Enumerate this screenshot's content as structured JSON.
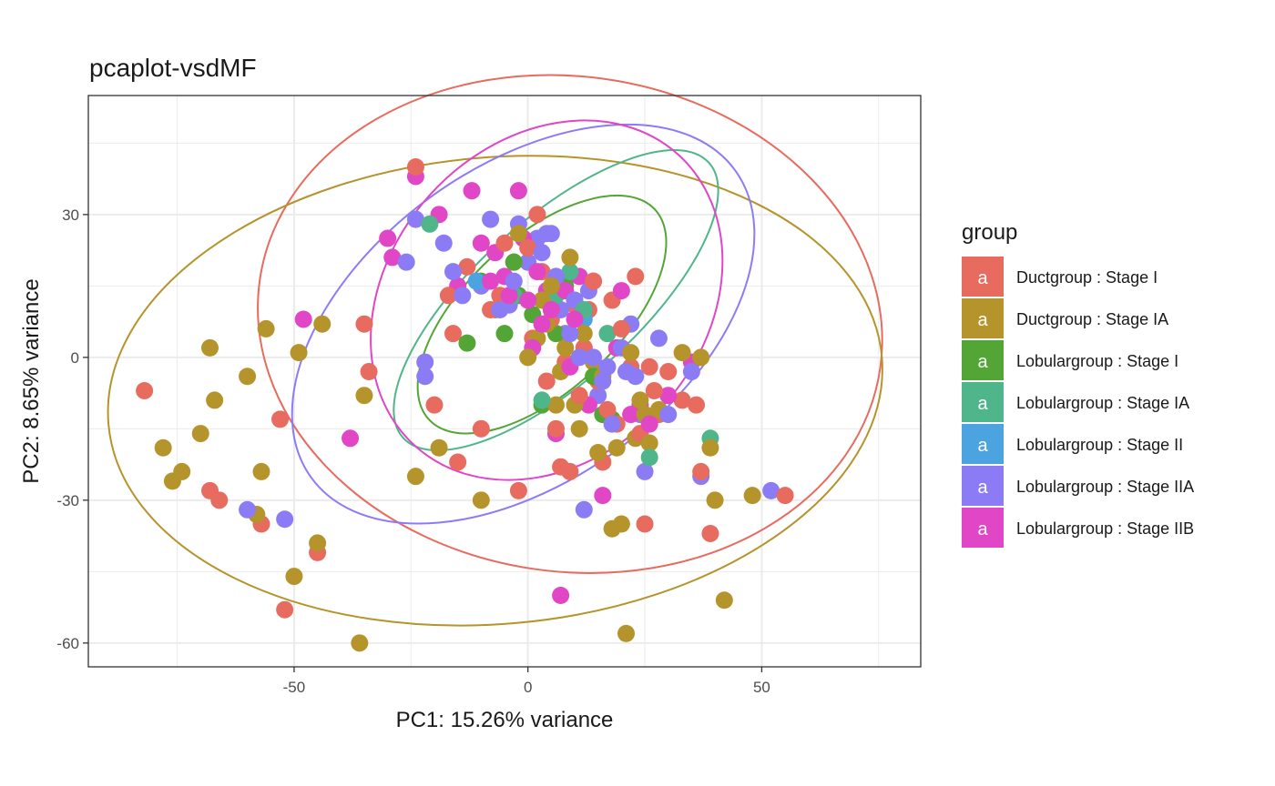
{
  "chart_data": {
    "type": "scatter",
    "title": "pcaplot-vsdMF",
    "xlabel": "PC1: 15.26% variance",
    "ylabel": "PC2: 8.65% variance",
    "xlim": [
      -94,
      84
    ],
    "ylim": [
      -65,
      55
    ],
    "xticks": [
      -50,
      0,
      50
    ],
    "yticks": [
      -60,
      -30,
      0,
      30
    ],
    "xtick_labels": [
      "-50",
      "0",
      "50"
    ],
    "ytick_labels": [
      "-60",
      "-30",
      "0",
      "30"
    ],
    "grid": true,
    "legend": {
      "title": "group",
      "placement": "right",
      "key_glyph": "a"
    },
    "series": [
      {
        "name": "Ductgroup : Stage I",
        "color": "#E76B5F",
        "ellipse": {
          "center": [
            9,
            7
          ],
          "rx": 67,
          "ry": 52,
          "angle": -8
        },
        "points": [
          [
            -82,
            -7
          ],
          [
            -68,
            -28
          ],
          [
            -66,
            -30
          ],
          [
            -57,
            -35
          ],
          [
            -53,
            -13
          ],
          [
            -52,
            -53
          ],
          [
            -45,
            -41
          ],
          [
            -35,
            7
          ],
          [
            -34,
            -3
          ],
          [
            -24,
            40
          ],
          [
            -20,
            -10
          ],
          [
            -17,
            13
          ],
          [
            -16,
            5
          ],
          [
            -15,
            -22
          ],
          [
            -13,
            19
          ],
          [
            -8,
            10
          ],
          [
            -5,
            24
          ],
          [
            -3,
            20
          ],
          [
            -2,
            -28
          ],
          [
            0,
            23
          ],
          [
            2,
            30
          ],
          [
            3,
            18
          ],
          [
            5,
            8
          ],
          [
            6,
            -15
          ],
          [
            7,
            -23
          ],
          [
            8,
            -1
          ],
          [
            9,
            -24
          ],
          [
            11,
            -8
          ],
          [
            12,
            2
          ],
          [
            13,
            10
          ],
          [
            14,
            16
          ],
          [
            16,
            -22
          ],
          [
            17,
            -11
          ],
          [
            18,
            12
          ],
          [
            20,
            6
          ],
          [
            22,
            -2
          ],
          [
            23,
            17
          ],
          [
            24,
            -16
          ],
          [
            25,
            -35
          ],
          [
            26,
            -2
          ],
          [
            28,
            -12
          ],
          [
            30,
            -3
          ],
          [
            33,
            -9
          ],
          [
            36,
            -10
          ],
          [
            37,
            -24
          ],
          [
            39,
            -37
          ],
          [
            55,
            -29
          ],
          [
            -10,
            -15
          ],
          [
            4,
            -5
          ],
          [
            10,
            11
          ],
          [
            19,
            -14
          ],
          [
            27,
            -7
          ],
          [
            -6,
            13
          ],
          [
            15,
            -5
          ],
          [
            1,
            4
          ]
        ]
      },
      {
        "name": "Ductgroup : Stage IA",
        "color": "#B5942B",
        "ellipse": {
          "center": [
            -7,
            -7
          ],
          "rx": 83,
          "ry": 49,
          "angle": 5
        },
        "points": [
          [
            -78,
            -19
          ],
          [
            -76,
            -26
          ],
          [
            -74,
            -24
          ],
          [
            -70,
            -16
          ],
          [
            -68,
            2
          ],
          [
            -67,
            -9
          ],
          [
            -60,
            -4
          ],
          [
            -58,
            -33
          ],
          [
            -57,
            -24
          ],
          [
            -56,
            6
          ],
          [
            -50,
            -46
          ],
          [
            -49,
            1
          ],
          [
            -45,
            -39
          ],
          [
            -44,
            7
          ],
          [
            -36,
            -60
          ],
          [
            -35,
            -8
          ],
          [
            -24,
            -25
          ],
          [
            -19,
            -19
          ],
          [
            -10,
            -30
          ],
          [
            -2,
            26
          ],
          [
            0,
            0
          ],
          [
            2,
            4
          ],
          [
            4,
            7
          ],
          [
            6,
            -10
          ],
          [
            7,
            -3
          ],
          [
            9,
            21
          ],
          [
            10,
            -10
          ],
          [
            12,
            5
          ],
          [
            14,
            -1
          ],
          [
            15,
            -20
          ],
          [
            18,
            -36
          ],
          [
            19,
            -19
          ],
          [
            20,
            -35
          ],
          [
            21,
            -58
          ],
          [
            22,
            1
          ],
          [
            24,
            -9
          ],
          [
            25,
            -12
          ],
          [
            26,
            -18
          ],
          [
            28,
            -11
          ],
          [
            33,
            1
          ],
          [
            37,
            0
          ],
          [
            39,
            -19
          ],
          [
            40,
            -30
          ],
          [
            42,
            -51
          ],
          [
            48,
            -29
          ],
          [
            -7,
            10
          ],
          [
            3,
            12
          ],
          [
            8,
            2
          ],
          [
            16,
            -4
          ],
          [
            23,
            -17
          ],
          [
            11,
            -15
          ],
          [
            5,
            15
          ]
        ]
      },
      {
        "name": "Lobulargroup : Stage I",
        "color": "#53A535",
        "ellipse": {
          "center": [
            3,
            9
          ],
          "rx": 33,
          "ry": 16,
          "angle": 43
        },
        "points": [
          [
            -13,
            3
          ],
          [
            -10,
            16
          ],
          [
            -5,
            5
          ],
          [
            -3,
            20
          ],
          [
            1,
            9
          ],
          [
            3,
            -10
          ],
          [
            6,
            5
          ],
          [
            8,
            15
          ],
          [
            10,
            12
          ],
          [
            16,
            -12
          ],
          [
            18,
            -13
          ],
          [
            14,
            -4
          ],
          [
            -2,
            13
          ]
        ]
      },
      {
        "name": "Lobulargroup : Stage IA",
        "color": "#4FB58B",
        "ellipse": {
          "center": [
            6,
            12
          ],
          "rx": 44,
          "ry": 17,
          "angle": 42
        },
        "points": [
          [
            -21,
            28
          ],
          [
            -3,
            13
          ],
          [
            3,
            -9
          ],
          [
            6,
            13
          ],
          [
            9,
            18
          ],
          [
            17,
            5
          ],
          [
            26,
            -21
          ],
          [
            39,
            -17
          ],
          [
            12,
            10
          ]
        ]
      },
      {
        "name": "Lobulargroup : Stage II",
        "color": "#4BA4E0",
        "ellipse": null,
        "points": [
          [
            -11,
            16
          ],
          [
            12,
            8
          ]
        ]
      },
      {
        "name": "Lobulargroup : Stage IIA",
        "color": "#8B7CF6",
        "ellipse": {
          "center": [
            -1,
            7
          ],
          "rx": 56,
          "ry": 33,
          "angle": 36
        },
        "points": [
          [
            -60,
            -32
          ],
          [
            -52,
            -34
          ],
          [
            -26,
            20
          ],
          [
            -24,
            29
          ],
          [
            -22,
            -1
          ],
          [
            -22,
            -4
          ],
          [
            -18,
            24
          ],
          [
            -16,
            18
          ],
          [
            -10,
            15
          ],
          [
            -6,
            10
          ],
          [
            -4,
            11
          ],
          [
            -2,
            28
          ],
          [
            0,
            20
          ],
          [
            2,
            25
          ],
          [
            4,
            26
          ],
          [
            5,
            26
          ],
          [
            6,
            17
          ],
          [
            8,
            5
          ],
          [
            9,
            5
          ],
          [
            10,
            12
          ],
          [
            12,
            -32
          ],
          [
            14,
            0
          ],
          [
            15,
            -8
          ],
          [
            16,
            -5
          ],
          [
            18,
            -14
          ],
          [
            20,
            2
          ],
          [
            21,
            -3
          ],
          [
            22,
            7
          ],
          [
            24,
            -12
          ],
          [
            25,
            -24
          ],
          [
            28,
            4
          ],
          [
            30,
            -12
          ],
          [
            35,
            -3
          ],
          [
            37,
            -25
          ],
          [
            52,
            -28
          ],
          [
            -8,
            29
          ],
          [
            -3,
            16
          ],
          [
            3,
            22
          ],
          [
            7,
            10
          ],
          [
            11,
            0
          ],
          [
            17,
            -2
          ],
          [
            23,
            -4
          ],
          [
            13,
            14
          ],
          [
            -14,
            13
          ]
        ]
      },
      {
        "name": "Lobulargroup : Stage IIB",
        "color": "#E046C5",
        "ellipse": {
          "center": [
            4,
            12
          ],
          "rx": 42,
          "ry": 33,
          "angle": 48
        },
        "points": [
          [
            -48,
            8
          ],
          [
            -38,
            -17
          ],
          [
            -30,
            25
          ],
          [
            -29,
            21
          ],
          [
            -24,
            38
          ],
          [
            -19,
            30
          ],
          [
            -15,
            15
          ],
          [
            -12,
            35
          ],
          [
            -10,
            24
          ],
          [
            -7,
            22
          ],
          [
            -5,
            17
          ],
          [
            -2,
            35
          ],
          [
            -1,
            25
          ],
          [
            0,
            12
          ],
          [
            2,
            18
          ],
          [
            4,
            14
          ],
          [
            5,
            10
          ],
          [
            6,
            -16
          ],
          [
            7,
            -50
          ],
          [
            8,
            14
          ],
          [
            10,
            8
          ],
          [
            12,
            2
          ],
          [
            14,
            16
          ],
          [
            16,
            -29
          ],
          [
            19,
            2
          ],
          [
            20,
            14
          ],
          [
            22,
            -12
          ],
          [
            24,
            -10
          ],
          [
            30,
            -8
          ],
          [
            35,
            -1
          ],
          [
            -8,
            16
          ],
          [
            -4,
            13
          ],
          [
            3,
            7
          ],
          [
            9,
            -2
          ],
          [
            13,
            -10
          ],
          [
            26,
            -14
          ],
          [
            1,
            2
          ],
          [
            11,
            17
          ]
        ]
      }
    ]
  }
}
